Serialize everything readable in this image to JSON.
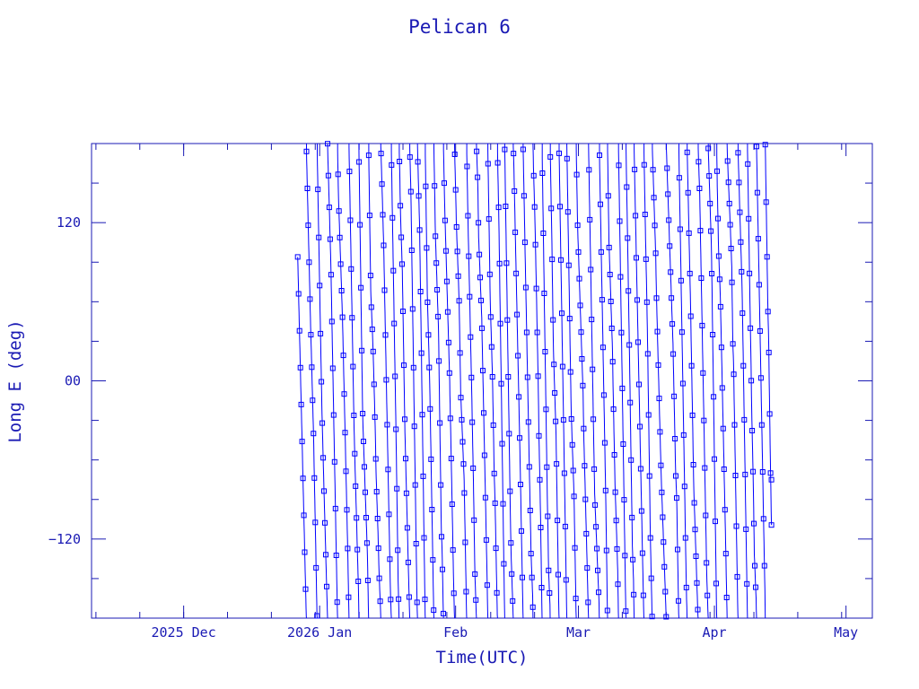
{
  "chart_data": {
    "type": "line",
    "title": "Pelican 6",
    "xlabel": "Time(UTC)",
    "ylabel": "Long E (deg)",
    "color": "#0000ff",
    "axis_color": "#1a1ab4",
    "x_range": [
      "2025-11-10",
      "2026-05-07"
    ],
    "ylim": [
      -180,
      180
    ],
    "y_ticks": [
      {
        "value": 120,
        "label": "120"
      },
      {
        "value": 0,
        "label": "00"
      },
      {
        "value": -120,
        "label": "−120"
      }
    ],
    "x_ticks": [
      {
        "date": "2025-12-01",
        "label": "2025 Dec"
      },
      {
        "date": "2026-01-01",
        "label": "2026 Jan"
      },
      {
        "date": "2026-02-01",
        "label": "Feb"
      },
      {
        "date": "2026-03-01",
        "label": "Mar"
      },
      {
        "date": "2026-04-01",
        "label": "Apr"
      },
      {
        "date": "2026-05-01",
        "label": "May"
      }
    ],
    "series": [
      {
        "data_start": "2025-12-27",
        "data_end": "2026-04-14",
        "start_longitude": 94,
        "end_longitude": -75,
        "pattern": "rapid drift, longitude wrapping between -180 and 180 roughly every 2-4 days",
        "marker": "square"
      }
    ]
  }
}
